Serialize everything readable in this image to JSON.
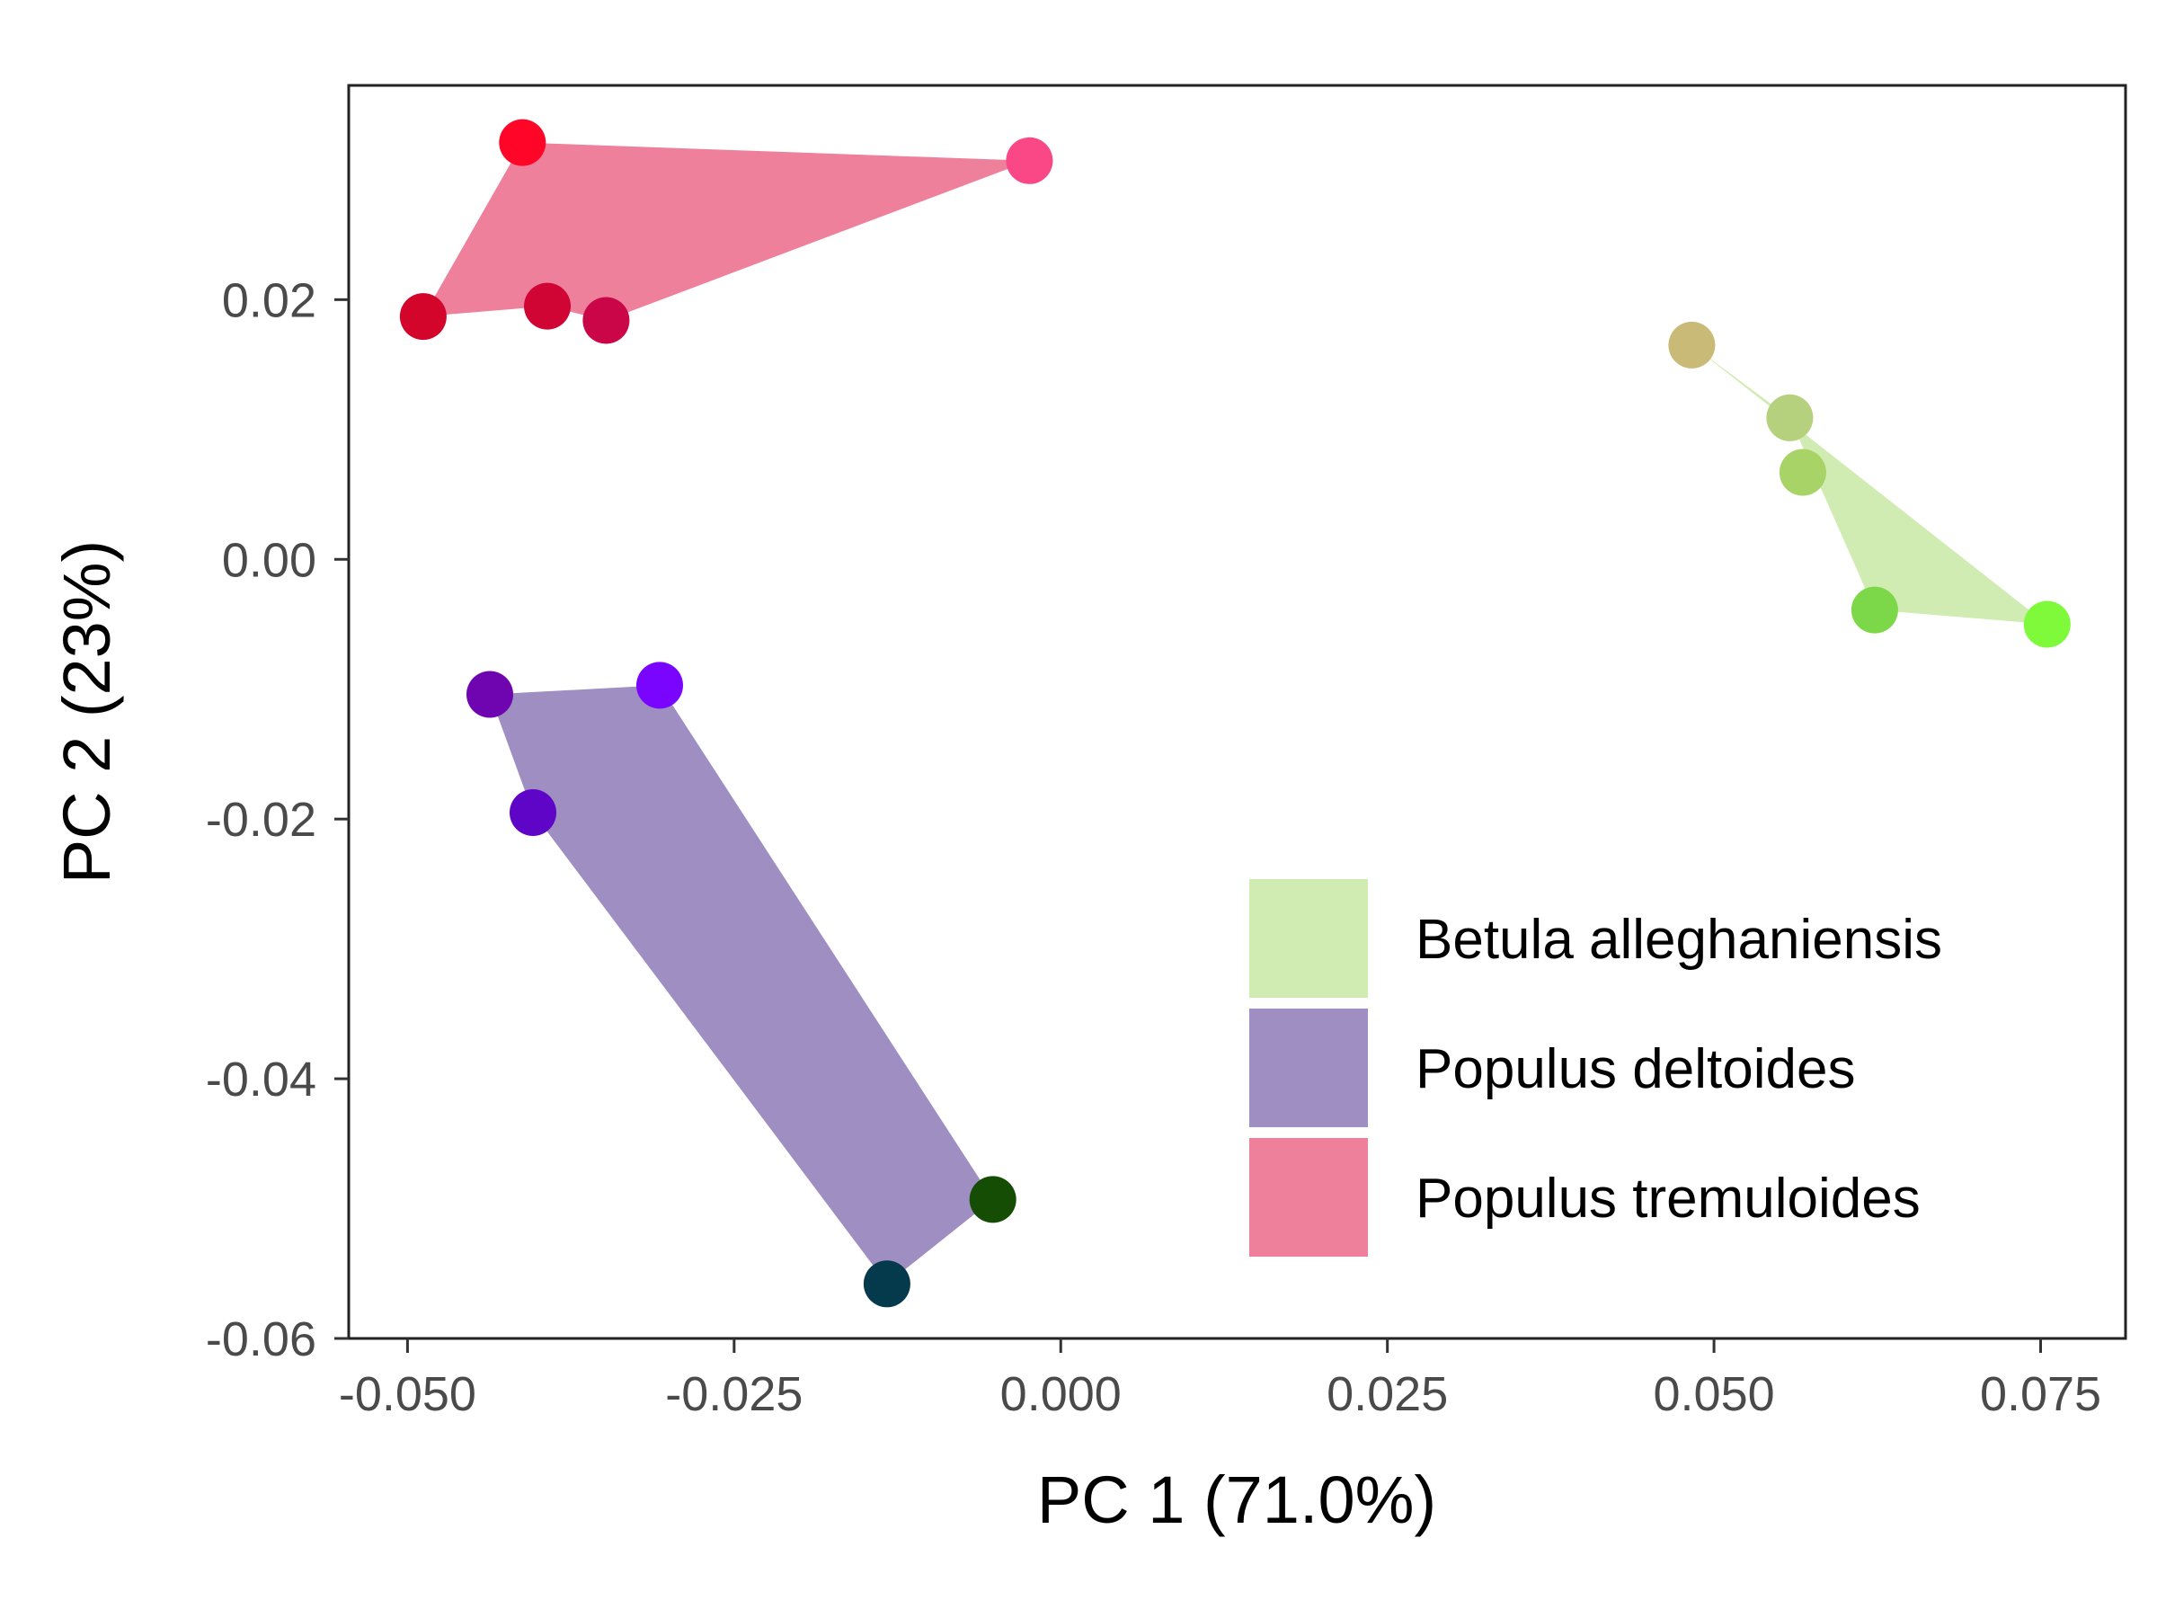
{
  "chart_data": {
    "type": "scatter",
    "title": "",
    "xlabel": "PC 1 (71.0%)",
    "ylabel": "PC 2 (23%)",
    "xlim": [
      -0.0545,
      0.0815
    ],
    "ylim": [
      -0.06,
      0.0365
    ],
    "xticks": [
      -0.05,
      -0.025,
      0.0,
      0.025,
      0.05,
      0.075
    ],
    "xtick_labels": [
      "-0.050",
      "-0.025",
      "0.000",
      "0.025",
      "0.050",
      "0.075"
    ],
    "yticks": [
      -0.06,
      -0.04,
      -0.02,
      0.0,
      0.02
    ],
    "ytick_labels": [
      "-0.06",
      "-0.04",
      "-0.02",
      "0.00",
      "0.02"
    ],
    "grid": false,
    "legend_position": "bottom-right",
    "series": [
      {
        "name": "Betula alleghaniensis",
        "hull_color": "#d1ecb3",
        "hull": [
          [
            0.0483,
            0.0165
          ],
          [
            0.0755,
            -0.005
          ],
          [
            0.0623,
            -0.0039
          ],
          [
            0.0558,
            0.0109
          ]
        ],
        "points": [
          {
            "x": 0.0483,
            "y": 0.0165,
            "color": "#c9bb77"
          },
          {
            "x": 0.0558,
            "y": 0.0109,
            "color": "#b6d17e"
          },
          {
            "x": 0.0568,
            "y": 0.0067,
            "color": "#a8d366"
          },
          {
            "x": 0.0623,
            "y": -0.0039,
            "color": "#7cd848"
          },
          {
            "x": 0.0755,
            "y": -0.005,
            "color": "#7efa3a"
          }
        ]
      },
      {
        "name": "Populus deltoides",
        "hull_color": "#9e8ec2",
        "hull": [
          [
            -0.0437,
            -0.0104
          ],
          [
            -0.0307,
            -0.0097
          ],
          [
            -0.0052,
            -0.0493
          ],
          [
            -0.0133,
            -0.0558
          ],
          [
            -0.0404,
            -0.0195
          ]
        ],
        "points": [
          {
            "x": -0.0437,
            "y": -0.0104,
            "color": "#6f05b0"
          },
          {
            "x": -0.0307,
            "y": -0.0097,
            "color": "#7a05ff"
          },
          {
            "x": -0.0404,
            "y": -0.0195,
            "color": "#5f05c8"
          },
          {
            "x": -0.0052,
            "y": -0.0493,
            "color": "#164d05"
          },
          {
            "x": -0.0133,
            "y": -0.0558,
            "color": "#053a4d"
          }
        ]
      },
      {
        "name": "Populus tremuloides",
        "hull_color": "#ee809c",
        "hull": [
          [
            -0.0412,
            0.0321
          ],
          [
            -0.0024,
            0.0307
          ],
          [
            -0.0348,
            0.0184
          ],
          [
            -0.0393,
            0.0195
          ],
          [
            -0.0488,
            0.0187
          ]
        ],
        "points": [
          {
            "x": -0.0412,
            "y": 0.0321,
            "color": "#ff0528"
          },
          {
            "x": -0.0024,
            "y": 0.0307,
            "color": "#fa4887"
          },
          {
            "x": -0.0488,
            "y": 0.0187,
            "color": "#d4052a"
          },
          {
            "x": -0.0393,
            "y": 0.0195,
            "color": "#d00534"
          },
          {
            "x": -0.0348,
            "y": 0.0184,
            "color": "#ca0548"
          }
        ]
      }
    ]
  }
}
